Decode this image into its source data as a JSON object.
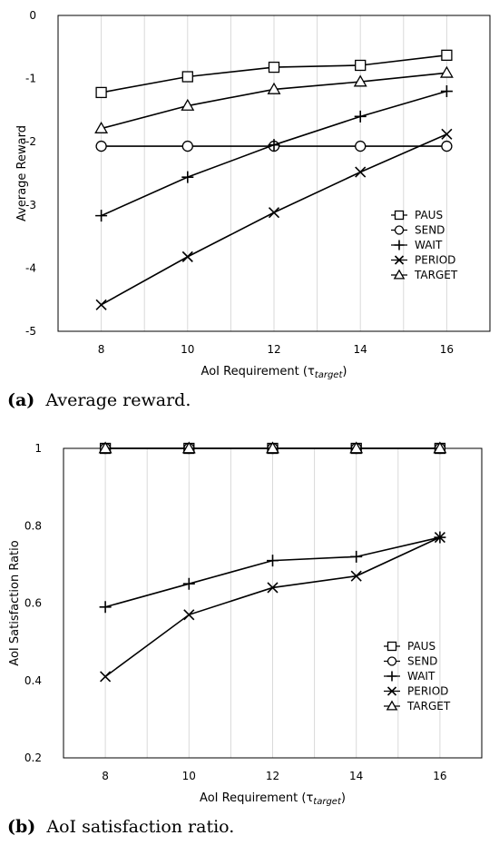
{
  "chart_data": [
    {
      "type": "line",
      "title": "",
      "xlabel": "AoI Requirement (τ",
      "xlabel_sub": "target",
      "xlabel_end": ")",
      "ylabel": "Average Reward",
      "ylim": [
        -5,
        0
      ],
      "yticks": [
        0,
        -1,
        -2,
        -3,
        -4,
        -5
      ],
      "ytick_labels": [
        "0",
        "-1",
        "-2",
        "-3",
        "-4",
        "-5"
      ],
      "x": [
        8,
        10,
        12,
        14,
        16
      ],
      "xlim": [
        7,
        17
      ],
      "grid": "vertical",
      "legend_position": "bottom-right",
      "series": [
        {
          "name": "PAUS",
          "marker": "square",
          "values": [
            -1.22,
            -0.97,
            -0.82,
            -0.79,
            -0.63
          ]
        },
        {
          "name": "SEND",
          "marker": "circle",
          "values": [
            -2.07,
            -2.07,
            -2.07,
            -2.07,
            -2.07
          ]
        },
        {
          "name": "WAIT",
          "marker": "plus",
          "values": [
            -3.17,
            -2.56,
            -2.05,
            -1.6,
            -1.2
          ]
        },
        {
          "name": "PERIOD",
          "marker": "cross",
          "values": [
            -4.58,
            -3.82,
            -3.12,
            -2.48,
            -1.88
          ]
        },
        {
          "name": "TARGET",
          "marker": "triangle",
          "values": [
            -1.79,
            -1.43,
            -1.17,
            -1.05,
            -0.91
          ]
        }
      ]
    },
    {
      "type": "line",
      "title": "",
      "xlabel": "AoI Requirement (τ",
      "xlabel_sub": "target",
      "xlabel_end": ")",
      "ylabel": "AoI Satisfaction Ratio",
      "ylim": [
        0.2,
        1
      ],
      "yticks": [
        1,
        0.8,
        0.6,
        0.4,
        0.2
      ],
      "ytick_labels": [
        "1",
        "0.8",
        "0.6",
        "0.4",
        "0.2"
      ],
      "x": [
        8,
        10,
        12,
        14,
        16
      ],
      "xlim": [
        7,
        17
      ],
      "grid": "vertical",
      "legend_position": "bottom-right",
      "series": [
        {
          "name": "PAUS",
          "marker": "square",
          "values": [
            1,
            1,
            1,
            1,
            1
          ]
        },
        {
          "name": "SEND",
          "marker": "circle",
          "values": [
            1,
            1,
            1,
            1,
            1
          ]
        },
        {
          "name": "WAIT",
          "marker": "plus",
          "values": [
            0.59,
            0.65,
            0.71,
            0.72,
            0.77
          ]
        },
        {
          "name": "PERIOD",
          "marker": "cross",
          "values": [
            0.41,
            0.57,
            0.64,
            0.67,
            0.77
          ]
        },
        {
          "name": "TARGET",
          "marker": "triangle",
          "values": [
            1,
            1,
            1,
            1,
            1
          ]
        }
      ]
    }
  ],
  "captions": [
    {
      "label": "(a)",
      "text": "Average reward."
    },
    {
      "label": "(b)",
      "text": "AoI satisfaction ratio."
    }
  ]
}
